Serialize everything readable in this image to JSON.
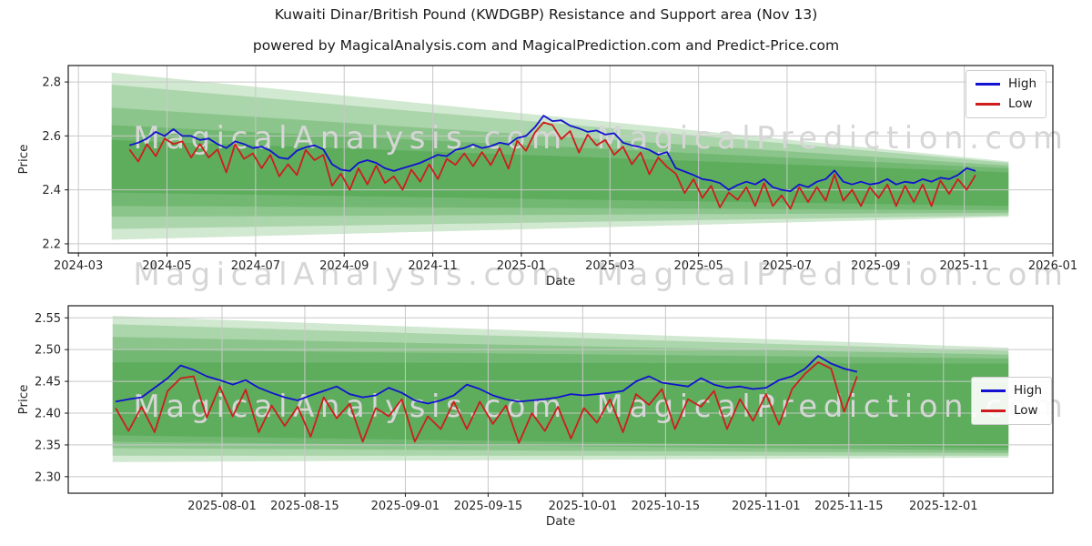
{
  "figure": {
    "title": "Kuwaiti Dinar/British Pound (KWDGBP) Resistance and Support area (Nov 13)",
    "subtitle": "powered by MagicalAnalysis.com and MagicalPrediction.com and Predict-Price.com"
  },
  "watermarks": [
    "MagicalAnalysis.com",
    "MagicalPrediction.com"
  ],
  "legend": {
    "high": "High",
    "low": "Low",
    "positions": [
      "upper right",
      "center right"
    ]
  },
  "colors": {
    "high_line": "#1212d0",
    "low_line": "#cf1d1d",
    "band": "#008000",
    "band_opacity": 0.18,
    "grid": "#c8c8c8",
    "spine": "#1a1a1a",
    "tick_text": "#262626",
    "watermark": "#d6d6d6"
  },
  "chart_data": [
    {
      "type": "line",
      "title": "KWDGBP daily High/Low with resistance and support fan (full history)",
      "xlabel": "Date",
      "ylabel": "Price",
      "grid": true,
      "x_unit": "months since 2024-01-01 (2.0 = 2024-03-01)",
      "xlim": [
        1.77,
        24.0
      ],
      "ylim": [
        2.166,
        2.861
      ],
      "xticks": [
        {
          "v": 2,
          "label": "2024-03"
        },
        {
          "v": 4,
          "label": "2024-05"
        },
        {
          "v": 6,
          "label": "2024-07"
        },
        {
          "v": 8,
          "label": "2024-09"
        },
        {
          "v": 10,
          "label": "2024-11"
        },
        {
          "v": 12,
          "label": "2025-01"
        },
        {
          "v": 14,
          "label": "2025-03"
        },
        {
          "v": 16,
          "label": "2025-05"
        },
        {
          "v": 18,
          "label": "2025-07"
        },
        {
          "v": 20,
          "label": "2025-09"
        },
        {
          "v": 22,
          "label": "2025-11"
        },
        {
          "v": 24,
          "label": "2026-01"
        }
      ],
      "yticks": [
        {
          "v": 2.2,
          "label": "2.2"
        },
        {
          "v": 2.4,
          "label": "2.4"
        },
        {
          "v": 2.6,
          "label": "2.6"
        },
        {
          "v": 2.8,
          "label": "2.8"
        }
      ],
      "series_x0": 3.15,
      "series_dx": 0.199,
      "series": [
        {
          "name": "High",
          "color_key": "high_line",
          "values": [
            2.565,
            2.575,
            2.59,
            2.615,
            2.6,
            2.625,
            2.6,
            2.6,
            2.585,
            2.59,
            2.57,
            2.555,
            2.58,
            2.57,
            2.555,
            2.56,
            2.545,
            2.52,
            2.515,
            2.545,
            2.558,
            2.565,
            2.55,
            2.495,
            2.475,
            2.47,
            2.5,
            2.51,
            2.5,
            2.48,
            2.47,
            2.48,
            2.49,
            2.5,
            2.515,
            2.53,
            2.525,
            2.548,
            2.555,
            2.568,
            2.555,
            2.562,
            2.575,
            2.568,
            2.592,
            2.6,
            2.632,
            2.675,
            2.655,
            2.658,
            2.638,
            2.628,
            2.615,
            2.62,
            2.605,
            2.61,
            2.575,
            2.565,
            2.558,
            2.548,
            2.53,
            2.54,
            2.48,
            2.468,
            2.455,
            2.44,
            2.435,
            2.425,
            2.4,
            2.418,
            2.43,
            2.42,
            2.44,
            2.41,
            2.4,
            2.395,
            2.42,
            2.41,
            2.43,
            2.44,
            2.472,
            2.43,
            2.42,
            2.43,
            2.42,
            2.425,
            2.44,
            2.42,
            2.43,
            2.425,
            2.44,
            2.43,
            2.445,
            2.44,
            2.455,
            2.48,
            2.47
          ]
        },
        {
          "name": "Low",
          "color_key": "low_line",
          "values": [
            2.55,
            2.505,
            2.57,
            2.525,
            2.59,
            2.57,
            2.58,
            2.52,
            2.57,
            2.52,
            2.55,
            2.465,
            2.57,
            2.515,
            2.535,
            2.48,
            2.53,
            2.45,
            2.495,
            2.455,
            2.548,
            2.51,
            2.53,
            2.415,
            2.46,
            2.4,
            2.48,
            2.42,
            2.49,
            2.425,
            2.45,
            2.4,
            2.475,
            2.43,
            2.495,
            2.44,
            2.515,
            2.493,
            2.535,
            2.488,
            2.54,
            2.492,
            2.555,
            2.478,
            2.582,
            2.545,
            2.612,
            2.65,
            2.64,
            2.588,
            2.618,
            2.538,
            2.605,
            2.565,
            2.585,
            2.53,
            2.56,
            2.495,
            2.538,
            2.458,
            2.52,
            2.485,
            2.46,
            2.388,
            2.44,
            2.37,
            2.415,
            2.335,
            2.39,
            2.363,
            2.41,
            2.34,
            2.425,
            2.34,
            2.38,
            2.33,
            2.41,
            2.355,
            2.41,
            2.36,
            2.457,
            2.36,
            2.4,
            2.34,
            2.41,
            2.37,
            2.42,
            2.34,
            2.415,
            2.355,
            2.42,
            2.34,
            2.435,
            2.385,
            2.44,
            2.4,
            2.455
          ]
        }
      ],
      "bands": [
        {
          "x0": 2.75,
          "x1": 23.0,
          "top0": 2.835,
          "bot0": 2.215,
          "top1": 2.505,
          "bot1": 2.3
        },
        {
          "x0": 2.75,
          "x1": 23.0,
          "top0": 2.79,
          "bot0": 2.255,
          "top1": 2.5,
          "bot1": 2.305
        },
        {
          "x0": 2.75,
          "x1": 23.0,
          "top0": 2.705,
          "bot0": 2.3,
          "top1": 2.49,
          "bot1": 2.315
        },
        {
          "x0": 2.75,
          "x1": 23.0,
          "top0": 2.64,
          "bot0": 2.34,
          "top1": 2.48,
          "bot1": 2.325
        },
        {
          "x0": 2.75,
          "x1": 23.0,
          "top0": 2.585,
          "bot0": 2.39,
          "top1": 2.465,
          "bot1": 2.34
        }
      ]
    },
    {
      "type": "line",
      "title": "KWDGBP daily High/Low with resistance and support fan (recent zoom)",
      "xlabel": "Date",
      "ylabel": "Price",
      "grid": true,
      "x_unit": "days since 2025-07-01 (31 = 2025-08-01)",
      "xlim": [
        5,
        171.5
      ],
      "ylim": [
        2.274,
        2.569
      ],
      "xticks": [
        {
          "v": 31,
          "label": "2025-08-01"
        },
        {
          "v": 45,
          "label": "2025-08-15"
        },
        {
          "v": 62,
          "label": "2025-09-01"
        },
        {
          "v": 76,
          "label": "2025-09-15"
        },
        {
          "v": 92,
          "label": "2025-10-01"
        },
        {
          "v": 106,
          "label": "2025-10-15"
        },
        {
          "v": 123,
          "label": "2025-11-01"
        },
        {
          "v": 137,
          "label": "2025-11-15"
        },
        {
          "v": 153,
          "label": "2025-12-01"
        }
      ],
      "yticks": [
        {
          "v": 2.3,
          "label": "2.30"
        },
        {
          "v": 2.35,
          "label": "2.35"
        },
        {
          "v": 2.4,
          "label": "2.40"
        },
        {
          "v": 2.45,
          "label": "2.45"
        },
        {
          "v": 2.5,
          "label": "2.50"
        },
        {
          "v": 2.55,
          "label": "2.55"
        }
      ],
      "series_x0": 13,
      "series_dx": 2.2,
      "series": [
        {
          "name": "High",
          "color_key": "high_line",
          "values": [
            2.418,
            2.422,
            2.425,
            2.44,
            2.455,
            2.475,
            2.468,
            2.458,
            2.452,
            2.445,
            2.452,
            2.44,
            2.432,
            2.425,
            2.42,
            2.428,
            2.435,
            2.442,
            2.43,
            2.425,
            2.428,
            2.44,
            2.432,
            2.42,
            2.415,
            2.42,
            2.428,
            2.445,
            2.438,
            2.428,
            2.422,
            2.418,
            2.42,
            2.422,
            2.425,
            2.43,
            2.428,
            2.43,
            2.432,
            2.435,
            2.45,
            2.458,
            2.448,
            2.445,
            2.442,
            2.455,
            2.445,
            2.44,
            2.442,
            2.438,
            2.44,
            2.452,
            2.458,
            2.47,
            2.49,
            2.478,
            2.47,
            2.465
          ]
        },
        {
          "name": "Low",
          "color_key": "low_line",
          "values": [
            2.408,
            2.372,
            2.41,
            2.37,
            2.435,
            2.455,
            2.458,
            2.393,
            2.442,
            2.395,
            2.437,
            2.37,
            2.412,
            2.38,
            2.41,
            2.363,
            2.425,
            2.392,
            2.415,
            2.355,
            2.408,
            2.395,
            2.422,
            2.355,
            2.395,
            2.375,
            2.418,
            2.375,
            2.418,
            2.383,
            2.412,
            2.353,
            2.4,
            2.372,
            2.41,
            2.36,
            2.408,
            2.385,
            2.422,
            2.37,
            2.43,
            2.413,
            2.438,
            2.375,
            2.422,
            2.41,
            2.435,
            2.375,
            2.422,
            2.388,
            2.43,
            2.382,
            2.438,
            2.462,
            2.48,
            2.47,
            2.402,
            2.458
          ]
        }
      ],
      "bands": [
        {
          "x0": 12.5,
          "x1": 164,
          "top0": 2.553,
          "bot0": 2.323,
          "top1": 2.503,
          "bot1": 2.33
        },
        {
          "x0": 12.5,
          "x1": 164,
          "top0": 2.54,
          "bot0": 2.333,
          "top1": 2.498,
          "bot1": 2.333
        },
        {
          "x0": 12.5,
          "x1": 164,
          "top0": 2.52,
          "bot0": 2.345,
          "top1": 2.492,
          "bot1": 2.337
        },
        {
          "x0": 12.5,
          "x1": 164,
          "top0": 2.5,
          "bot0": 2.355,
          "top1": 2.486,
          "bot1": 2.341
        },
        {
          "x0": 12.5,
          "x1": 164,
          "top0": 2.48,
          "bot0": 2.365,
          "top1": 2.478,
          "bot1": 2.345
        }
      ]
    }
  ]
}
